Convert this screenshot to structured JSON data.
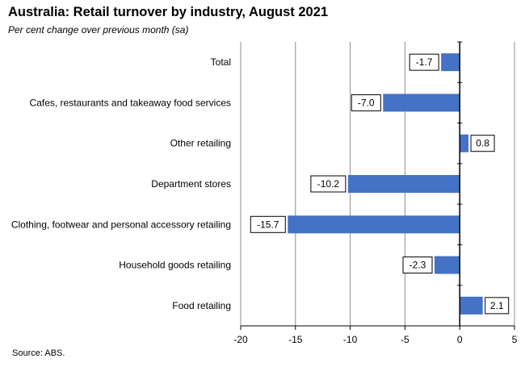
{
  "title": "Australia: Retail turnover by industry, August 2021",
  "subtitle": "Per cent change over previous month (sa)",
  "source": "Source: ABS.",
  "chart_data": {
    "type": "bar",
    "orientation": "horizontal",
    "categories": [
      "Total",
      "Cafes, restaurants and takeaway food services",
      "Other retailing",
      "Department stores",
      "Clothing, footwear and personal accessory retailing",
      "Household goods retailing",
      "Food retailing"
    ],
    "values": [
      -1.7,
      -7.0,
      0.8,
      -10.2,
      -15.7,
      -2.3,
      2.1
    ],
    "value_labels": [
      "-1.7",
      "-7.0",
      "0.8",
      "-10.2",
      "-15.7",
      "-2.3",
      "2.1"
    ],
    "xlim": [
      -20,
      5
    ],
    "xticks": [
      -20,
      -15,
      -10,
      -5,
      0,
      5
    ],
    "xtick_labels": [
      "-20",
      "-15",
      "-10",
      "-5",
      "0",
      "5"
    ],
    "grid": "vertical",
    "bar_color": "#4472C4"
  }
}
